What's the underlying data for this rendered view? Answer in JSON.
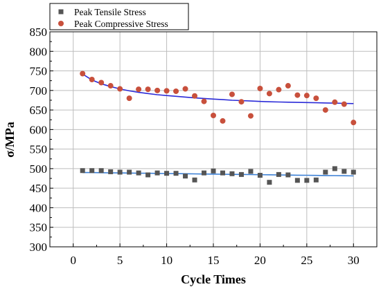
{
  "chart_data": {
    "type": "scatter",
    "xlabel": "Cycle Times",
    "ylabel": "σ/MPa",
    "xlim": [
      -2.5,
      32.5
    ],
    "ylim": [
      300,
      850
    ],
    "xticks": [
      0,
      5,
      10,
      15,
      20,
      25,
      30
    ],
    "yticks": [
      300,
      350,
      400,
      450,
      500,
      550,
      600,
      650,
      700,
      750,
      800,
      850
    ],
    "grid": true,
    "legend_position": "top-left",
    "series": [
      {
        "name": "Peak Tensile Stress",
        "marker": "square",
        "color": "#555555",
        "fit_color": "#3a7fd5",
        "x": [
          1,
          2,
          3,
          4,
          5,
          6,
          7,
          8,
          9,
          10,
          11,
          12,
          13,
          14,
          15,
          16,
          17,
          18,
          19,
          20,
          21,
          22,
          23,
          24,
          25,
          26,
          27,
          28,
          29,
          30
        ],
        "values": [
          495,
          495,
          495,
          492,
          491,
          491,
          489,
          484,
          489,
          488,
          488,
          481,
          471,
          489,
          494,
          489,
          487,
          485,
          493,
          483,
          465,
          485,
          484,
          470,
          470,
          471,
          491,
          500,
          493,
          491
        ],
        "fit": [
          490,
          490,
          489.6,
          489.3,
          489,
          488.7,
          488.4,
          488.1,
          487.8,
          487.5,
          487.2,
          486.9,
          486.6,
          486.3,
          486,
          485.7,
          485.4,
          485.1,
          484.8,
          484.5,
          484.2,
          483.9,
          483.6,
          483.3,
          483,
          482.7,
          482.4,
          482.1,
          481.8,
          481.5
        ]
      },
      {
        "name": "Peak Compressive Stress",
        "marker": "circle",
        "color": "#c8503c",
        "fit_color": "#2a2ad8",
        "x": [
          1,
          2,
          3,
          4,
          5,
          6,
          7,
          8,
          9,
          10,
          11,
          12,
          13,
          14,
          15,
          16,
          17,
          18,
          19,
          20,
          21,
          22,
          23,
          24,
          25,
          26,
          27,
          28,
          29,
          30
        ],
        "values": [
          743,
          728,
          720,
          712,
          704,
          680,
          703,
          703,
          700,
          699,
          698,
          704,
          686,
          672,
          636,
          622,
          690,
          671,
          635,
          705,
          692,
          702,
          712,
          688,
          687,
          680,
          650,
          670,
          665,
          618
        ],
        "fit": [
          742,
          727,
          717,
          710,
          704,
          699,
          695,
          692,
          689,
          687,
          685,
          683,
          681,
          679.5,
          678,
          676.5,
          675,
          674,
          673,
          672,
          671,
          670.5,
          670,
          669.5,
          669,
          668.5,
          668,
          667.5,
          667,
          666.5
        ]
      }
    ]
  }
}
